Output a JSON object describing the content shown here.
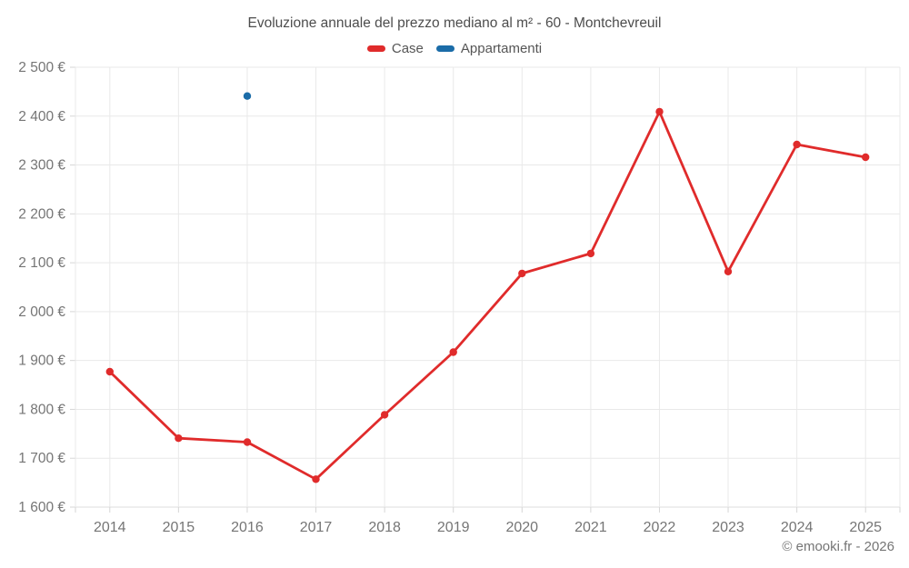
{
  "header": {
    "title": "Evoluzione annuale del prezzo mediano al m² - 60 - Montchevreuil"
  },
  "legend": {
    "items": [
      {
        "label": "Case",
        "color": "#e02b2b"
      },
      {
        "label": "Appartamenti",
        "color": "#1b6ca8"
      }
    ]
  },
  "footer": {
    "credit": "© emooki.fr - 2026"
  },
  "colors": {
    "case_red": "#e02b2b",
    "appartamenti_blue": "#1b6ca8",
    "grid": "#e9e9e9",
    "axis": "#dddddd",
    "tick": "#d6d6d6",
    "axis_label": "#757575",
    "title_text": "#4d4d4d"
  },
  "chart_data": {
    "type": "line",
    "title": "Evoluzione annuale del prezzo mediano al m² - 60 - Montchevreuil",
    "categories": [
      "2014",
      "2015",
      "2016",
      "2017",
      "2018",
      "2019",
      "2020",
      "2021",
      "2022",
      "2023",
      "2024",
      "2025"
    ],
    "series": [
      {
        "name": "Case",
        "color": "#e02b2b",
        "type": "line",
        "values": [
          1877,
          1741,
          1733,
          1657,
          1789,
          1917,
          2078,
          2119,
          2409,
          2082,
          2342,
          2316
        ]
      },
      {
        "name": "Appartamenti",
        "color": "#1b6ca8",
        "type": "scatter",
        "values": [
          null,
          null,
          2441,
          null,
          null,
          null,
          null,
          null,
          null,
          null,
          null,
          null
        ]
      }
    ],
    "xlabel": "",
    "ylabel": "",
    "ylim": [
      1600,
      2500
    ],
    "ytick_step": 100,
    "ytick_labels": [
      "1 600 €",
      "1 700 €",
      "1 800 €",
      "1 900 €",
      "2 000 €",
      "2 100 €",
      "2 200 €",
      "2 300 €",
      "2 400 €",
      "2 500 €"
    ],
    "grid": true,
    "legend_position": "top"
  }
}
